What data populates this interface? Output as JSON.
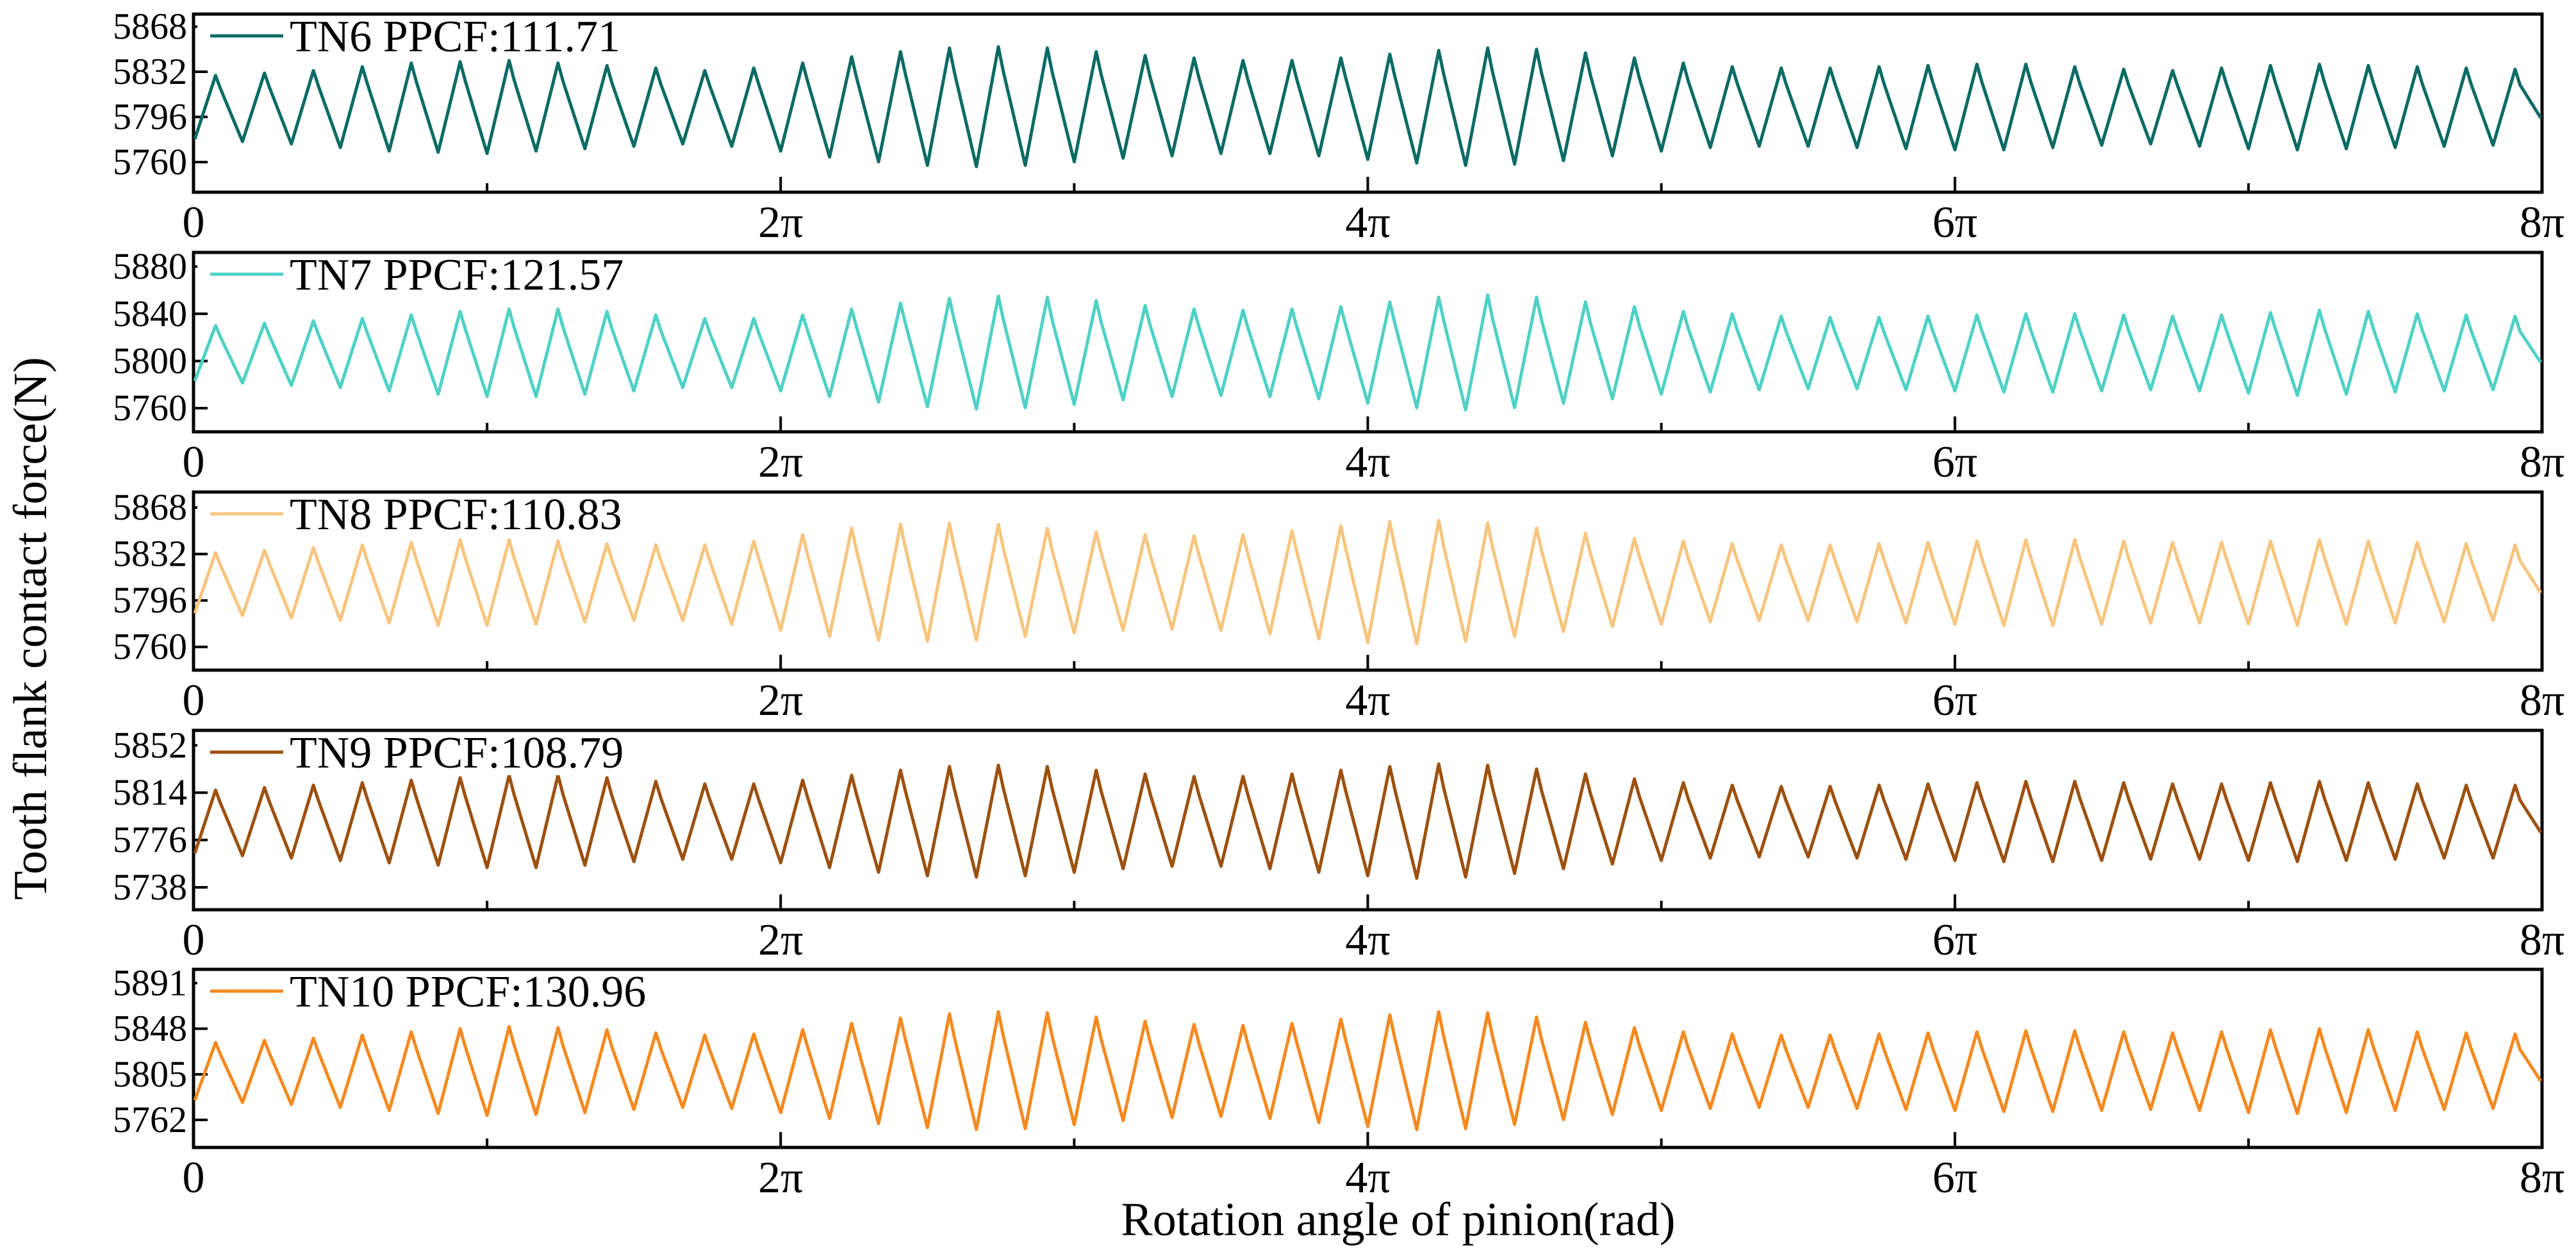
{
  "figure": {
    "ylabel": "Tooth flank contact force(N)",
    "xlabel": "Rotation angle of pinion(rad)",
    "xticks": [
      "0",
      "2π",
      "4π",
      "6π",
      "8π"
    ]
  },
  "chart_data": [
    {
      "type": "line",
      "name": "TN6",
      "legend": "TN6  PPCF:111.71",
      "color": "#0b6b63",
      "xlim": [
        0,
        25.133
      ],
      "ylim": [
        5736,
        5878
      ],
      "yticks": [
        5760,
        5796,
        5832,
        5868
      ],
      "ytick_labels": [
        "5760",
        "5796",
        "5832",
        "5868"
      ],
      "cycles": 48,
      "mean": 5803,
      "amplitude_envelope": [
        26,
        28,
        30,
        33,
        36,
        37,
        38,
        36,
        34,
        32,
        30,
        32,
        36,
        41,
        45,
        48,
        49,
        48,
        45,
        42,
        40,
        38,
        38,
        40,
        43,
        46,
        48,
        47,
        44,
        40,
        36,
        33,
        32,
        32,
        33,
        34,
        35,
        35,
        33,
        31,
        30,
        32,
        34,
        35,
        34,
        33,
        32,
        31
      ],
      "ppcf": 111.71
    },
    {
      "type": "line",
      "name": "TN7",
      "legend": "TN7  PPCF:121.57",
      "color": "#4fd1c5",
      "xlim": [
        0,
        25.133
      ],
      "ylim": [
        5740,
        5892
      ],
      "yticks": [
        5760,
        5800,
        5840,
        5880
      ],
      "ytick_labels": [
        "5760",
        "5800",
        "5840",
        "5880"
      ],
      "cycles": 48,
      "mean": 5806,
      "amplitude_envelope": [
        24,
        26,
        28,
        30,
        33,
        36,
        38,
        38,
        36,
        33,
        30,
        30,
        33,
        38,
        43,
        47,
        49,
        48,
        45,
        41,
        38,
        37,
        38,
        40,
        44,
        48,
        50,
        48,
        44,
        40,
        36,
        34,
        32,
        31,
        31,
        32,
        33,
        34,
        34,
        33,
        32,
        33,
        35,
        37,
        36,
        34,
        33,
        32
      ],
      "ppcf": 121.57
    },
    {
      "type": "line",
      "name": "TN8",
      "legend": "TN8  PPCF:110.83",
      "color": "#f7c57f",
      "xlim": [
        0,
        25.133
      ],
      "ylim": [
        5742,
        5880
      ],
      "yticks": [
        5760,
        5796,
        5832,
        5868
      ],
      "ytick_labels": [
        "5760",
        "5796",
        "5832",
        "5868"
      ],
      "cycles": 48,
      "mean": 5809,
      "amplitude_envelope": [
        24,
        26,
        28,
        30,
        32,
        34,
        34,
        33,
        31,
        30,
        30,
        33,
        38,
        43,
        46,
        47,
        46,
        43,
        40,
        38,
        37,
        38,
        41,
        45,
        48,
        49,
        47,
        43,
        39,
        35,
        33,
        31,
        30,
        30,
        31,
        32,
        33,
        34,
        34,
        33,
        32,
        32,
        33,
        34,
        33,
        32,
        31,
        30
      ],
      "ppcf": 110.83
    },
    {
      "type": "line",
      "name": "TN9",
      "legend": "TN9  PPCF:108.79",
      "color": "#9c500f",
      "xlim": [
        0,
        25.133
      ],
      "ylim": [
        5720,
        5864
      ],
      "yticks": [
        5738,
        5776,
        5814,
        5852
      ],
      "ytick_labels": [
        "5738",
        "5776",
        "5814",
        "5852"
      ],
      "cycles": 48,
      "mean": 5790,
      "amplitude_envelope": [
        26,
        28,
        30,
        32,
        34,
        36,
        38,
        38,
        36,
        33,
        31,
        31,
        34,
        38,
        42,
        45,
        46,
        45,
        42,
        39,
        37,
        37,
        39,
        42,
        45,
        47,
        46,
        43,
        39,
        35,
        32,
        30,
        29,
        29,
        30,
        31,
        32,
        33,
        33,
        32,
        31,
        31,
        32,
        33,
        32,
        31,
        30,
        30
      ],
      "ppcf": 108.79
    },
    {
      "type": "line",
      "name": "TN10",
      "legend": "TN10 PPCF:130.96",
      "color": "#f5891f",
      "xlim": [
        0,
        25.133
      ],
      "ylim": [
        5736,
        5904
      ],
      "yticks": [
        5762,
        5805,
        5848,
        5891
      ],
      "ytick_labels": [
        "5762",
        "5805",
        "5848",
        "5891"
      ],
      "cycles": 48,
      "mean": 5807,
      "amplitude_envelope": [
        28,
        30,
        32,
        35,
        38,
        41,
        43,
        42,
        40,
        37,
        35,
        36,
        40,
        46,
        51,
        55,
        57,
        56,
        52,
        48,
        45,
        44,
        46,
        50,
        54,
        57,
        56,
        52,
        47,
        42,
        38,
        36,
        35,
        35,
        36,
        37,
        38,
        39,
        39,
        38,
        37,
        38,
        40,
        41,
        40,
        38,
        37,
        36
      ],
      "ppcf": 130.96
    }
  ]
}
